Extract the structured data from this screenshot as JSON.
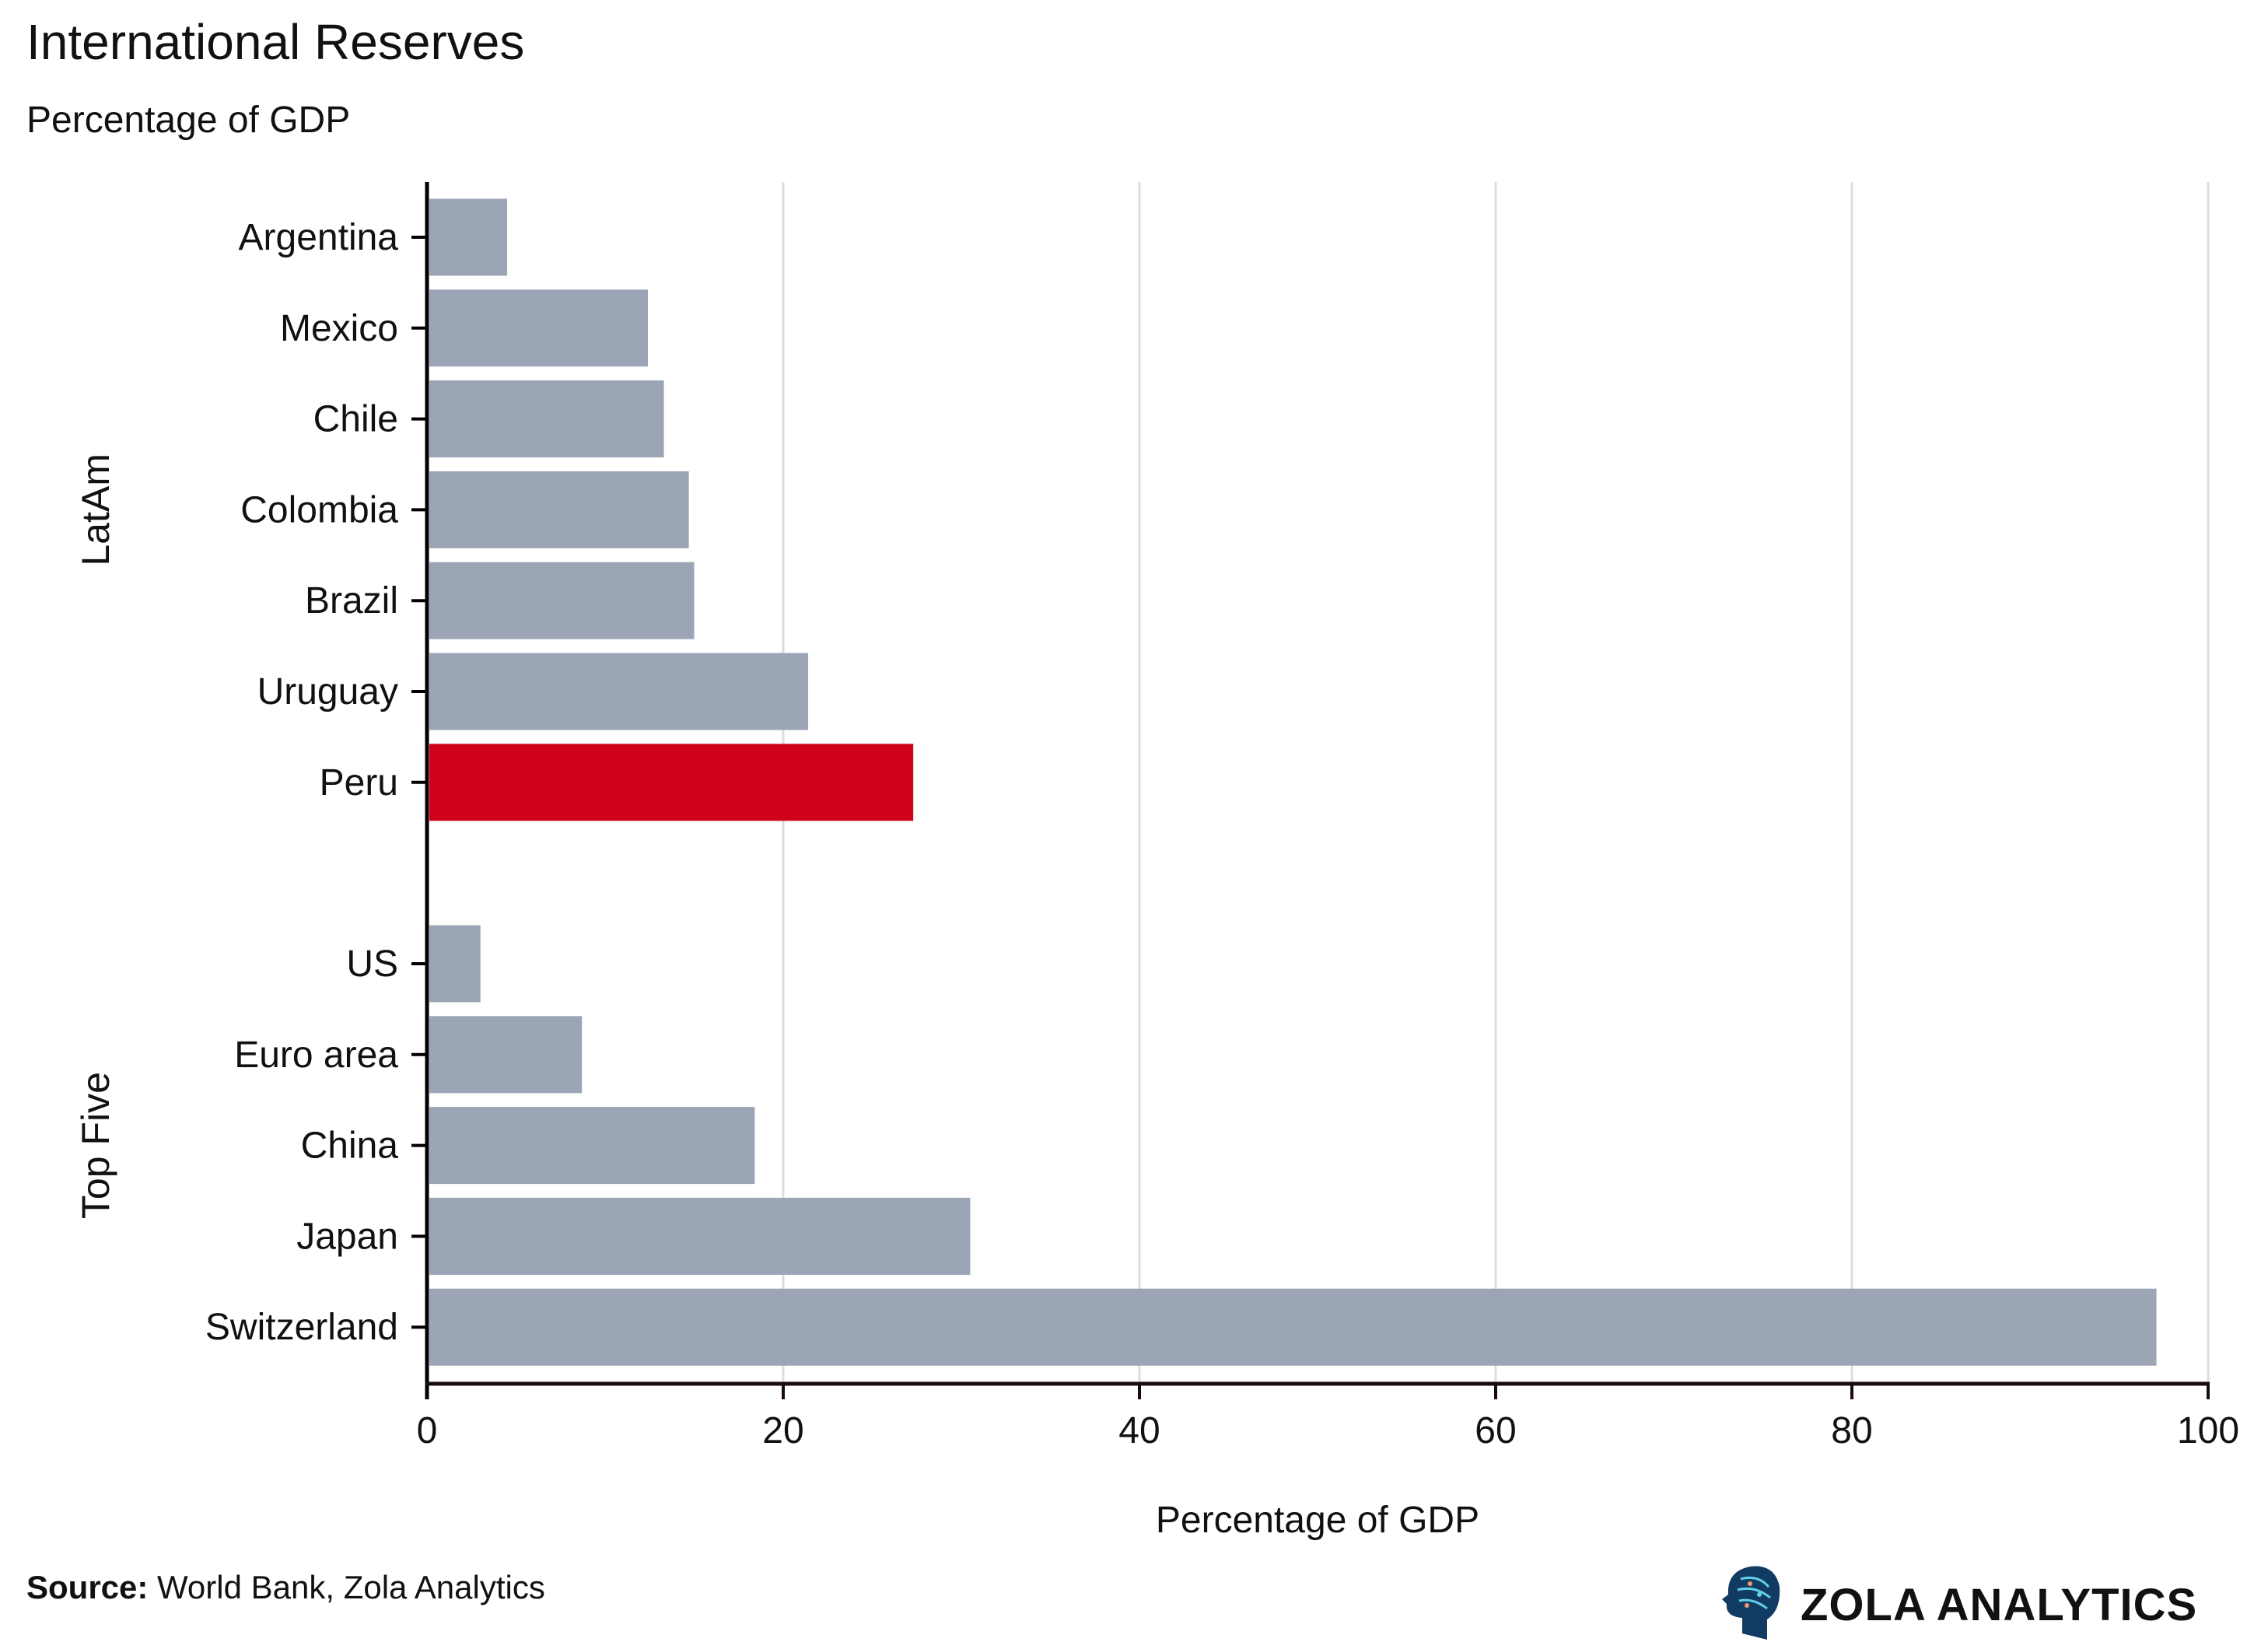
{
  "title": "International Reserves",
  "subtitle": "Percentage of GDP",
  "source_label": "Source:",
  "source_text": " World Bank, Zola Analytics",
  "logo_text": "ZOLA ANALYTICS",
  "colors": {
    "default_bar": "#9ca5b5",
    "highlight_bar": "#d0021b",
    "grid": "#dddddd",
    "axis": "#1a0a14"
  },
  "chart_data": {
    "type": "bar",
    "orientation": "horizontal",
    "title": "International Reserves",
    "subtitle": "Percentage of GDP",
    "xlabel": "Percentage of GDP",
    "ylabel": "",
    "xlim": [
      0,
      100
    ],
    "xticks": [
      "0",
      "20",
      "40",
      "60",
      "80",
      "100"
    ],
    "grid": "vertical",
    "groups": [
      {
        "name": "LatAm",
        "categories": [
          "Argentina",
          "Mexico",
          "Chile",
          "Colombia",
          "Brazil",
          "Uruguay",
          "Peru"
        ],
        "values": [
          4.5,
          12.4,
          13.3,
          14.7,
          15.0,
          21.4,
          27.3
        ],
        "highlight": "Peru"
      },
      {
        "name": "Top Five",
        "categories": [
          "US",
          "Euro area",
          "China",
          "Japan",
          "Switzerland"
        ],
        "values": [
          3.0,
          8.7,
          18.4,
          30.5,
          97.1
        ]
      }
    ]
  }
}
